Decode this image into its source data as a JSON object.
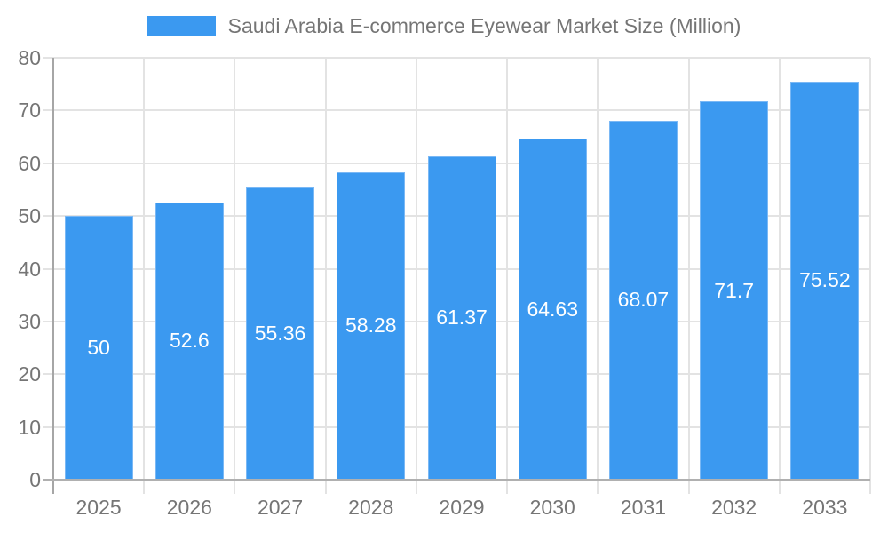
{
  "chart_data": {
    "type": "bar",
    "title": "Saudi Arabia E-commerce Eyewear Market Size (Million)",
    "legend": {
      "position": "top",
      "label": "Saudi Arabia E-commerce Eyewear Market Size (Million)"
    },
    "categories": [
      "2025",
      "2026",
      "2027",
      "2028",
      "2029",
      "2030",
      "2031",
      "2032",
      "2033"
    ],
    "series": [
      {
        "name": "Saudi Arabia E-commerce Eyewear Market Size (Million)",
        "values": [
          50,
          52.6,
          55.36,
          58.28,
          61.37,
          64.63,
          68.07,
          71.7,
          75.52
        ]
      }
    ],
    "value_labels": [
      "50",
      "52.6",
      "55.36",
      "58.28",
      "61.37",
      "64.63",
      "68.07",
      "71.7",
      "75.52"
    ],
    "xlabel": "",
    "ylabel": "",
    "ylim": [
      0,
      80
    ],
    "yticks": [
      0,
      10,
      20,
      30,
      40,
      50,
      60,
      70,
      80
    ],
    "grid": true,
    "colors": {
      "bar": "#3b99f0",
      "bar_border": "#7ab8f5",
      "value_label": "#ffffff",
      "axis_text": "#757575",
      "gridline": "#e3e3e3",
      "axis_line": "#a6a6a6",
      "zero_line": "#b0b0b0",
      "background": "#ffffff"
    }
  }
}
